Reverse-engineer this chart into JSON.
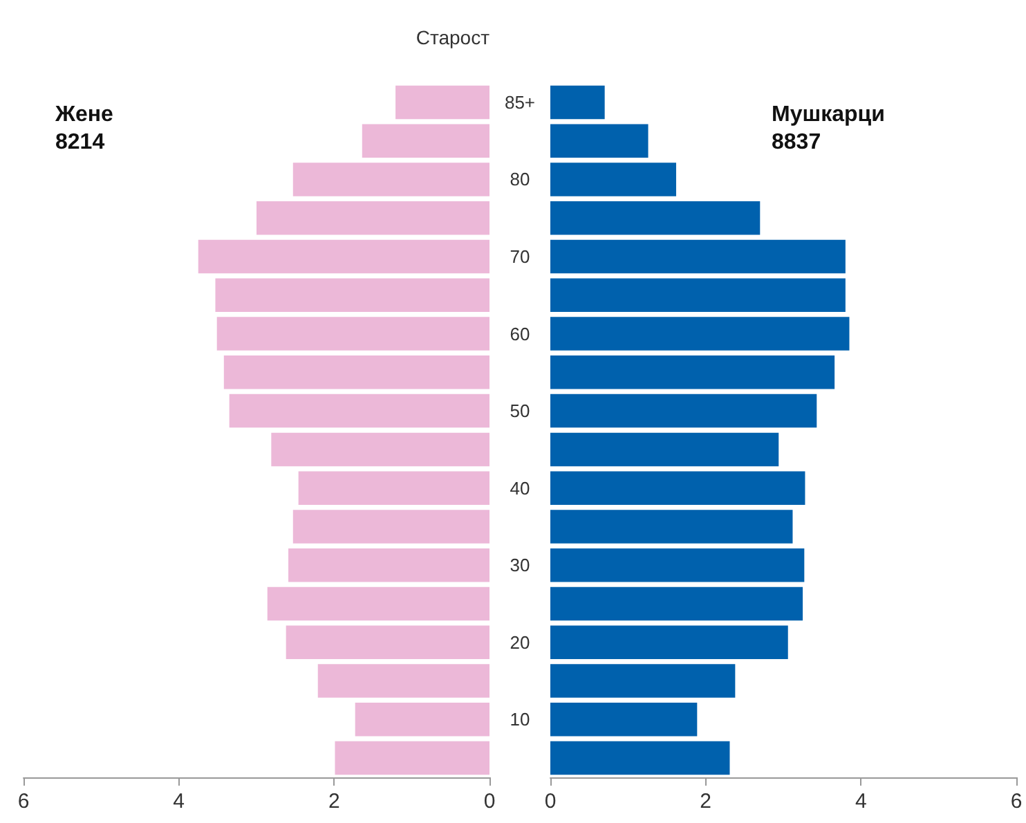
{
  "chart_data": [
    {
      "type": "bar",
      "orientation": "horizontal",
      "legend": false,
      "grid": false,
      "ylabel": "Старост",
      "categories": [
        "85+",
        null,
        "80",
        null,
        "70",
        null,
        "60",
        null,
        "50",
        null,
        "40",
        null,
        "30",
        null,
        "20",
        null,
        "10",
        null
      ],
      "series": [
        {
          "name": "Жене",
          "color": "#ecb8d8",
          "values": [
            1.21,
            1.64,
            2.53,
            3.0,
            3.75,
            3.53,
            3.51,
            3.42,
            3.35,
            2.81,
            2.46,
            2.53,
            2.59,
            2.86,
            2.62,
            2.21,
            1.73,
            1.99
          ]
        }
      ],
      "xlim": [
        6,
        0
      ],
      "xticks": [
        6,
        4,
        2,
        0
      ],
      "annotations": [
        "8214"
      ]
    },
    {
      "type": "bar",
      "orientation": "horizontal",
      "tick_labels": "x",
      "legend": false,
      "grid": false,
      "categories": [
        null,
        null,
        null,
        null,
        null,
        null,
        null,
        null,
        null,
        null,
        null,
        null,
        null,
        null,
        null,
        null,
        null,
        null
      ],
      "series": [
        {
          "name": "Мушкарци",
          "color": "#0061ad",
          "values": [
            0.7,
            1.26,
            1.62,
            2.7,
            3.8,
            3.8,
            3.85,
            3.66,
            3.43,
            2.94,
            3.28,
            3.12,
            3.27,
            3.25,
            3.06,
            2.38,
            1.89,
            2.31
          ]
        }
      ],
      "xlim": [
        0,
        6
      ],
      "xticks": [
        0,
        2,
        4,
        6
      ],
      "annotations": [
        "8837"
      ]
    }
  ]
}
